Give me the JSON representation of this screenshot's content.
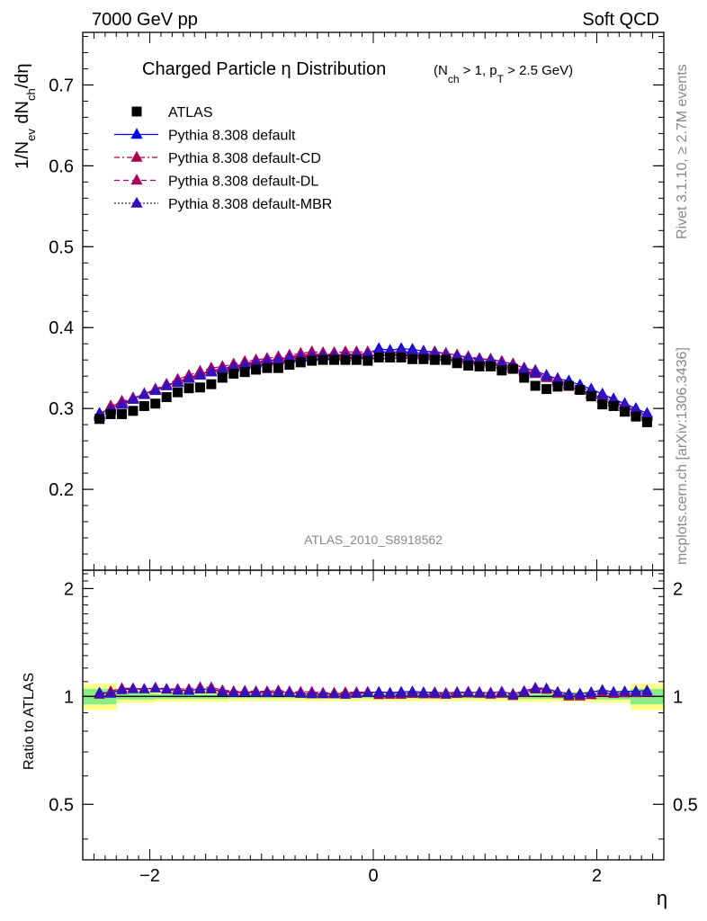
{
  "header": {
    "left": "7000 GeV pp",
    "right": "Soft QCD"
  },
  "side_labels": {
    "rivet": "Rivet 3.1.10, ≥ 2.7M events",
    "mcplots": "mcplots.cern.ch [arXiv:1306.3436]"
  },
  "analysis_label": "ATLAS_2010_S8918562",
  "chart_data": [
    {
      "type": "scatter",
      "panel": "main",
      "title": "Charged Particle η Distribution",
      "subtitle_parts": {
        "open": "(N",
        "sub1": "ch",
        "mid": " > 1, p",
        "sub2": "T",
        "close": " > 2.5 GeV)"
      },
      "ylabel_parts": {
        "a": "1/N",
        "sub_a": "ev",
        "b": " dN",
        "sub_b": "ch",
        "c": "/dη"
      },
      "xlabel": "η",
      "xlim": [
        -2.6,
        2.6
      ],
      "ylim": [
        0.1,
        0.765
      ],
      "x_ticks": [
        -2,
        0,
        2
      ],
      "x_tick_labels": [
        "−2",
        "0",
        "2"
      ],
      "y_ticks": [
        0.2,
        0.3,
        0.4,
        0.5,
        0.6,
        0.7
      ],
      "y_tick_labels": [
        "0.2",
        "0.3",
        "0.4",
        "0.5",
        "0.6",
        "0.7"
      ],
      "legend_position": "top-left",
      "x": [
        -2.45,
        -2.35,
        -2.25,
        -2.15,
        -2.05,
        -1.95,
        -1.85,
        -1.75,
        -1.65,
        -1.55,
        -1.45,
        -1.35,
        -1.25,
        -1.15,
        -1.05,
        -0.95,
        -0.85,
        -0.75,
        -0.65,
        -0.55,
        -0.45,
        -0.35,
        -0.25,
        -0.15,
        -0.05,
        0.05,
        0.15,
        0.25,
        0.35,
        0.45,
        0.55,
        0.65,
        0.75,
        0.85,
        0.95,
        1.05,
        1.15,
        1.25,
        1.35,
        1.45,
        1.55,
        1.65,
        1.75,
        1.85,
        1.95,
        2.05,
        2.15,
        2.25,
        2.35,
        2.45
      ],
      "series": [
        {
          "name": "ATLAS",
          "color": "#000000",
          "marker": "square",
          "line": "none",
          "values": [
            0.287,
            0.293,
            0.293,
            0.297,
            0.303,
            0.306,
            0.314,
            0.32,
            0.325,
            0.326,
            0.33,
            0.338,
            0.343,
            0.345,
            0.348,
            0.35,
            0.35,
            0.354,
            0.357,
            0.359,
            0.36,
            0.36,
            0.36,
            0.36,
            0.359,
            0.363,
            0.363,
            0.363,
            0.361,
            0.361,
            0.36,
            0.36,
            0.356,
            0.353,
            0.352,
            0.352,
            0.347,
            0.349,
            0.338,
            0.328,
            0.324,
            0.327,
            0.328,
            0.323,
            0.315,
            0.305,
            0.303,
            0.296,
            0.29,
            0.283
          ]
        },
        {
          "name": "Pythia 8.308 default",
          "color": "#0000ee",
          "marker": "triangle",
          "line": "solid",
          "values": [
            0.294,
            0.3,
            0.306,
            0.312,
            0.318,
            0.323,
            0.329,
            0.333,
            0.338,
            0.342,
            0.346,
            0.349,
            0.352,
            0.355,
            0.357,
            0.359,
            0.361,
            0.363,
            0.364,
            0.365,
            0.366,
            0.366,
            0.367,
            0.367,
            0.368,
            0.374,
            0.372,
            0.374,
            0.373,
            0.371,
            0.37,
            0.368,
            0.366,
            0.363,
            0.361,
            0.361,
            0.358,
            0.355,
            0.35,
            0.347,
            0.341,
            0.337,
            0.334,
            0.329,
            0.324,
            0.318,
            0.312,
            0.306,
            0.3,
            0.294
          ]
        },
        {
          "name": "Pythia 8.308 default-CD",
          "color": "#aa0044",
          "marker": "triangle",
          "line": "dashdot",
          "values": [
            0.292,
            0.303,
            0.309,
            0.313,
            0.318,
            0.323,
            0.328,
            0.333,
            0.338,
            0.343,
            0.346,
            0.35,
            0.353,
            0.356,
            0.358,
            0.36,
            0.362,
            0.364,
            0.366,
            0.367,
            0.367,
            0.367,
            0.367,
            0.368,
            0.367,
            0.366,
            0.367,
            0.367,
            0.367,
            0.366,
            0.365,
            0.364,
            0.362,
            0.36,
            0.358,
            0.356,
            0.353,
            0.35,
            0.346,
            0.343,
            0.338,
            0.333,
            0.328,
            0.323,
            0.318,
            0.313,
            0.309,
            0.303,
            0.297,
            0.29
          ]
        },
        {
          "name": "Pythia 8.308 default-DL",
          "color": "#aa0066",
          "marker": "triangle",
          "line": "dashed",
          "values": [
            0.29,
            0.302,
            0.308,
            0.313,
            0.318,
            0.324,
            0.33,
            0.336,
            0.341,
            0.346,
            0.35,
            0.352,
            0.355,
            0.358,
            0.36,
            0.362,
            0.364,
            0.366,
            0.368,
            0.37,
            0.369,
            0.369,
            0.37,
            0.37,
            0.37,
            0.37,
            0.37,
            0.37,
            0.369,
            0.369,
            0.369,
            0.368,
            0.366,
            0.364,
            0.362,
            0.36,
            0.358,
            0.355,
            0.35,
            0.346,
            0.341,
            0.336,
            0.33,
            0.324,
            0.318,
            0.313,
            0.308,
            0.302,
            0.296,
            0.29
          ]
        },
        {
          "name": "Pythia 8.308 default-MBR",
          "color": "#3311bb",
          "marker": "triangle",
          "line": "dotted",
          "values": [
            0.292,
            0.298,
            0.305,
            0.311,
            0.317,
            0.322,
            0.328,
            0.332,
            0.337,
            0.341,
            0.345,
            0.348,
            0.351,
            0.354,
            0.356,
            0.358,
            0.36,
            0.362,
            0.363,
            0.364,
            0.365,
            0.365,
            0.364,
            0.366,
            0.367,
            0.37,
            0.37,
            0.37,
            0.37,
            0.368,
            0.367,
            0.365,
            0.364,
            0.362,
            0.36,
            0.358,
            0.355,
            0.352,
            0.348,
            0.344,
            0.34,
            0.335,
            0.331,
            0.326,
            0.322,
            0.317,
            0.311,
            0.305,
            0.298,
            0.292
          ]
        }
      ]
    },
    {
      "type": "scatter",
      "panel": "ratio",
      "ylabel": "Ratio to ATLAS",
      "xlabel": "η",
      "xlim": [
        -2.6,
        2.6
      ],
      "ylim": [
        0.35,
        2.25
      ],
      "y_ticks": [
        0.5,
        1,
        2
      ],
      "y_tick_labels": [
        "0.5",
        "1",
        "2"
      ],
      "band_colors": {
        "inner": "#88ee88",
        "outer": "#ffff88"
      },
      "band_edges": [
        -2.6,
        -2.3,
        -1.95,
        -1.3,
        1.3,
        1.95,
        2.3,
        2.6
      ],
      "band_outer_halfwidth": [
        0.085,
        0.04,
        0.035,
        0.03,
        0.035,
        0.04,
        0.085
      ],
      "band_inner_halfwidth": [
        0.05,
        0.02,
        0.015,
        0.012,
        0.015,
        0.02,
        0.05
      ]
    }
  ]
}
